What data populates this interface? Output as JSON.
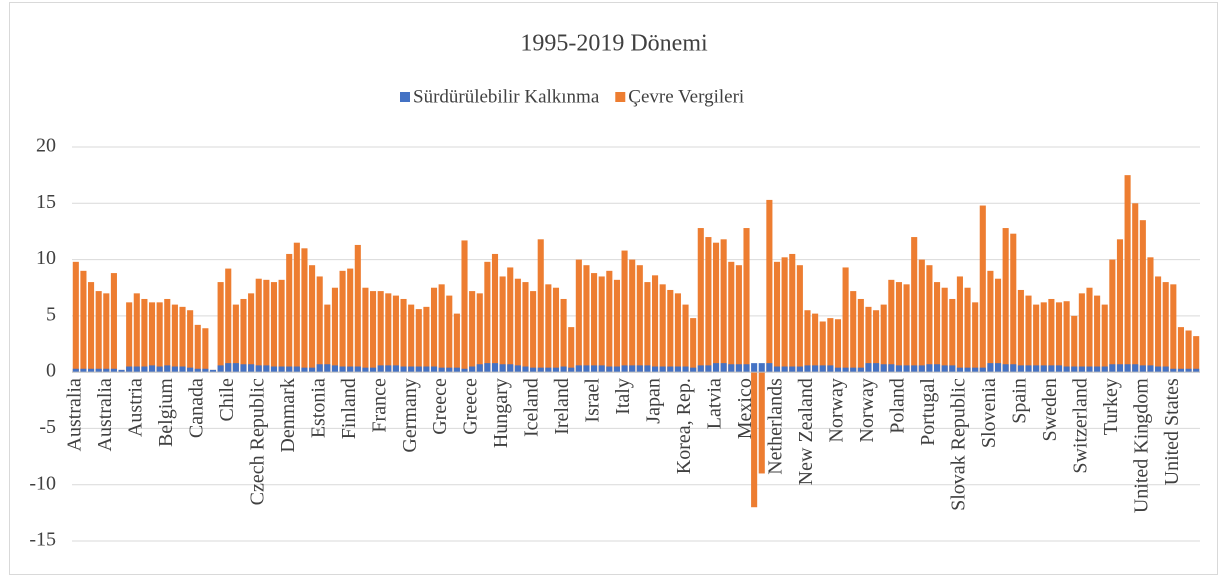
{
  "chart_data": {
    "type": "bar",
    "title": "1995-2019 Dönemi",
    "categories": [
      "Australia",
      null,
      null,
      null,
      "Australia",
      null,
      null,
      null,
      "Austria",
      null,
      null,
      null,
      "Belgium",
      null,
      null,
      null,
      "Canada",
      null,
      null,
      null,
      "Chile",
      null,
      null,
      null,
      "Czech Republic",
      null,
      null,
      null,
      "Denmark",
      null,
      null,
      null,
      "Estonia",
      null,
      null,
      null,
      "Finland",
      null,
      null,
      null,
      "France",
      null,
      null,
      null,
      "Germany",
      null,
      null,
      null,
      "Greece",
      null,
      null,
      null,
      "Greece",
      null,
      null,
      null,
      "Hungary",
      null,
      null,
      null,
      "Iceland",
      null,
      null,
      null,
      "Ireland",
      null,
      null,
      null,
      "Israel",
      null,
      null,
      null,
      "Italy",
      null,
      null,
      null,
      "Japan",
      null,
      null,
      null,
      "Korea, Rep.",
      null,
      null,
      null,
      "Latvia",
      null,
      null,
      null,
      "Mexico",
      null,
      null,
      null,
      "Netherlands",
      null,
      null,
      null,
      "New Zealand",
      null,
      null,
      null,
      "Norway",
      null,
      null,
      null,
      "Norway",
      null,
      null,
      null,
      "Poland",
      null,
      null,
      null,
      "Portugal",
      null,
      null,
      null,
      "Slovak Republic",
      null,
      null,
      null,
      "Slovenia",
      null,
      null,
      null,
      "Spain",
      null,
      null,
      null,
      "Sweden",
      null,
      null,
      null,
      "Switzerland",
      null,
      null,
      null,
      "Turkey",
      null,
      null,
      null,
      "United Kingdom",
      null,
      null,
      null,
      "United States",
      null,
      null,
      null
    ],
    "series": [
      {
        "name": "Sürdürülebilir Kalkınma",
        "color": "#4472c4",
        "values": [
          0.3,
          0.3,
          0.3,
          0.3,
          0.3,
          0.3,
          0.2,
          0.5,
          0.5,
          0.5,
          0.6,
          0.5,
          0.6,
          0.5,
          0.5,
          0.4,
          0.3,
          0.3,
          0.2,
          0.6,
          0.8,
          0.8,
          0.7,
          0.7,
          0.6,
          0.6,
          0.5,
          0.5,
          0.5,
          0.5,
          0.4,
          0.4,
          0.7,
          0.7,
          0.6,
          0.5,
          0.5,
          0.5,
          0.4,
          0.4,
          0.6,
          0.6,
          0.6,
          0.5,
          0.5,
          0.5,
          0.5,
          0.5,
          0.4,
          0.4,
          0.4,
          0.3,
          0.5,
          0.7,
          0.8,
          0.8,
          0.7,
          0.7,
          0.6,
          0.5,
          0.4,
          0.4,
          0.4,
          0.4,
          0.5,
          0.4,
          0.6,
          0.6,
          0.6,
          0.6,
          0.5,
          0.5,
          0.6,
          0.6,
          0.6,
          0.6,
          0.5,
          0.5,
          0.5,
          0.5,
          0.5,
          0.4,
          0.6,
          0.6,
          0.8,
          0.8,
          0.7,
          0.7,
          0.7,
          0.8,
          0.8,
          0.8,
          0.5,
          0.5,
          0.5,
          0.5,
          0.6,
          0.6,
          0.6,
          0.6,
          0.4,
          0.4,
          0.4,
          0.4,
          0.8,
          0.8,
          0.7,
          0.7,
          0.6,
          0.6,
          0.6,
          0.6,
          0.7,
          0.7,
          0.6,
          0.6,
          0.4,
          0.4,
          0.4,
          0.4,
          0.8,
          0.8,
          0.7,
          0.7,
          0.6,
          0.6,
          0.6,
          0.6,
          0.6,
          0.6,
          0.5,
          0.5,
          0.5,
          0.5,
          0.5,
          0.5,
          0.7,
          0.7,
          0.7,
          0.7,
          0.6,
          0.6,
          0.5,
          0.5,
          0.3,
          0.3,
          0.3,
          0.3
        ]
      },
      {
        "name": "Çevre Vergileri",
        "color": "#ed7d31",
        "values": [
          9.8,
          9.0,
          8.0,
          7.2,
          7.0,
          8.8,
          0.2,
          6.2,
          7.0,
          6.5,
          6.2,
          6.2,
          6.5,
          6.0,
          5.8,
          5.5,
          4.2,
          3.9,
          0.2,
          8.0,
          9.2,
          6.0,
          6.5,
          7.0,
          8.3,
          8.2,
          8.0,
          8.2,
          10.5,
          11.5,
          11.0,
          9.5,
          8.5,
          6.0,
          7.5,
          9.0,
          9.2,
          11.3,
          7.5,
          7.2,
          7.2,
          7.0,
          6.8,
          6.5,
          6.0,
          5.6,
          5.8,
          7.5,
          7.8,
          6.8,
          5.2,
          11.7,
          7.2,
          7.0,
          9.8,
          10.5,
          8.5,
          9.3,
          8.3,
          8.0,
          7.2,
          11.8,
          7.8,
          7.5,
          6.5,
          4.0,
          10.0,
          9.5,
          8.8,
          8.5,
          9.0,
          8.2,
          10.8,
          10.0,
          9.5,
          8.0,
          8.6,
          7.8,
          7.3,
          7.0,
          6.0,
          4.8,
          12.8,
          12.0,
          11.5,
          11.8,
          9.8,
          9.5,
          12.8,
          -12.0,
          -9.0,
          15.3,
          9.8,
          10.2,
          10.5,
          9.5,
          5.5,
          5.2,
          4.5,
          4.8,
          4.7,
          9.3,
          7.2,
          6.5,
          5.8,
          5.5,
          6.0,
          8.2,
          8.0,
          7.8,
          12.0,
          10.0,
          9.5,
          8.0,
          7.5,
          6.5,
          8.5,
          7.5,
          6.2,
          14.8,
          9.0,
          8.3,
          12.8,
          12.3,
          7.3,
          6.8,
          6.0,
          6.2,
          6.5,
          6.2,
          6.3,
          5.0,
          7.0,
          7.5,
          6.8,
          6.0,
          10.0,
          11.8,
          17.5,
          15.0,
          13.5,
          10.2,
          8.5,
          8.0,
          7.8,
          4.0,
          3.7,
          3.2
        ]
      }
    ],
    "ylim": [
      -15,
      20
    ],
    "yticks": [
      -15,
      -10,
      -5,
      0,
      5,
      10,
      15,
      20
    ],
    "grid": true
  }
}
